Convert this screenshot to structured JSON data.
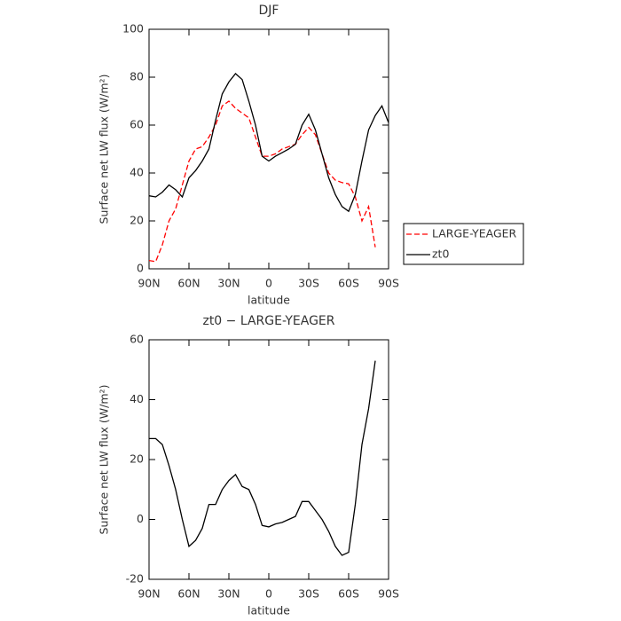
{
  "chart_data": [
    {
      "type": "line",
      "title": "DJF",
      "xlabel": "latitude",
      "ylabel": "Surface net LW flux (W/m²)",
      "x": [
        90,
        85,
        80,
        75,
        70,
        65,
        60,
        55,
        50,
        45,
        40,
        35,
        30,
        25,
        20,
        15,
        10,
        5,
        0,
        -5,
        -10,
        -15,
        -20,
        -25,
        -30,
        -35,
        -40,
        -45,
        -50,
        -55,
        -60,
        -65,
        -70,
        -75,
        -80,
        -85,
        -90
      ],
      "series": [
        {
          "name": "LARGE-YEAGER",
          "color": "#ff0000",
          "style": "dashed",
          "values": [
            3.5,
            3,
            10,
            20,
            25,
            35,
            45,
            50,
            51,
            55,
            60,
            68,
            70,
            67,
            65,
            63,
            55,
            47,
            47,
            48,
            50,
            51,
            52,
            56,
            59,
            56,
            48,
            40,
            37,
            36,
            35.5,
            30,
            20,
            26,
            9,
            null,
            null
          ]
        },
        {
          "name": "zt0",
          "color": "#000000",
          "style": "solid",
          "values": [
            30.5,
            30,
            32,
            35,
            33,
            30,
            38,
            41,
            45,
            50,
            62,
            73,
            78,
            81.5,
            79,
            70,
            60,
            47,
            45,
            47,
            48.5,
            50,
            52,
            60,
            64.5,
            58,
            48,
            38,
            31,
            26,
            24,
            31,
            45,
            58,
            64,
            68,
            61
          ]
        }
      ],
      "xlim": [
        90,
        -90
      ],
      "xticks": [
        {
          "value": 90,
          "label": "90N"
        },
        {
          "value": 60,
          "label": "60N"
        },
        {
          "value": 30,
          "label": "30N"
        },
        0,
        {
          "value": -30,
          "label": "30S"
        },
        {
          "value": -60,
          "label": "60S"
        },
        {
          "value": -90,
          "label": "90S"
        }
      ],
      "ylim": [
        0,
        100
      ],
      "yticks": [
        0,
        20,
        40,
        60,
        80,
        100
      ],
      "grid": false,
      "legend": "right"
    },
    {
      "type": "line",
      "title": "zt0 − LARGE-YEAGER",
      "xlabel": "latitude",
      "ylabel": "Surface net LW flux (W/m²)",
      "x": [
        90,
        85,
        80,
        75,
        70,
        65,
        60,
        55,
        50,
        45,
        40,
        35,
        30,
        25,
        20,
        15,
        10,
        5,
        0,
        -5,
        -10,
        -15,
        -20,
        -25,
        -30,
        -35,
        -40,
        -45,
        -50,
        -55,
        -60,
        -65,
        -70,
        -75,
        -80,
        -85,
        -90
      ],
      "series": [
        {
          "color": "#000000",
          "style": "solid",
          "values": [
            27,
            27,
            25,
            18,
            10,
            0,
            -9,
            -7,
            -3,
            5,
            5,
            10,
            13,
            15,
            11,
            10,
            5,
            -2,
            -2.5,
            -1.5,
            -1,
            0,
            1,
            6,
            6,
            3,
            0,
            -4,
            -9,
            -12,
            -11,
            5,
            25,
            37,
            53,
            null,
            null
          ]
        }
      ],
      "xlim": [
        90,
        -90
      ],
      "xticks": [
        {
          "value": 90,
          "label": "90N"
        },
        {
          "value": 60,
          "label": "60N"
        },
        {
          "value": 30,
          "label": "30N"
        },
        0,
        {
          "value": -30,
          "label": "30S"
        },
        {
          "value": -60,
          "label": "60S"
        },
        {
          "value": -90,
          "label": "90S"
        }
      ],
      "ylim": [
        -20,
        60
      ],
      "yticks": [
        -20,
        0,
        20,
        40,
        60
      ],
      "grid": false
    }
  ]
}
